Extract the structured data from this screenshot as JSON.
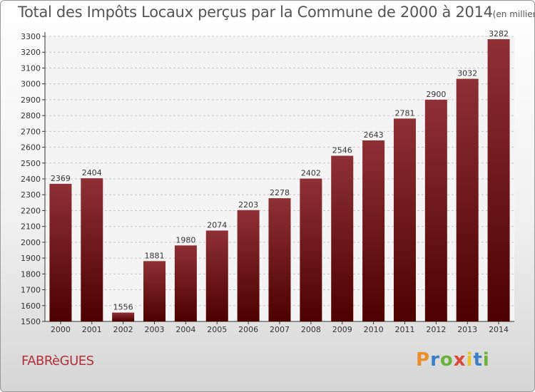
{
  "title": "Total des Impôts Locaux perçus par la Commune de 2000 à 2014",
  "unit": "(en milliers d'€)",
  "commune": "FABRèGUES",
  "logo": {
    "letters": [
      "P",
      "r",
      "o",
      "x",
      "i",
      "t",
      "i"
    ],
    "colors": [
      "#e8912c",
      "#3c7fc4",
      "#6cb33e",
      "#d94a3a",
      "#e8c72c",
      "#3c7fc4",
      "#6cb33e"
    ]
  },
  "chart_data": {
    "type": "bar",
    "title": "Total des Impôts Locaux perçus par la Commune de 2000 à 2014",
    "ylabel": "en milliers d'€",
    "categories": [
      "2000",
      "2001",
      "2002",
      "2003",
      "2004",
      "2005",
      "2006",
      "2007",
      "2008",
      "2009",
      "2010",
      "2011",
      "2012",
      "2013",
      "2014"
    ],
    "values": [
      2369,
      2404,
      1556,
      1881,
      1980,
      2074,
      2203,
      2278,
      2402,
      2546,
      2643,
      2781,
      2900,
      3032,
      3282
    ],
    "ylim": [
      1500,
      3300
    ],
    "yticks": [
      1500,
      1600,
      1700,
      1800,
      1900,
      2000,
      2100,
      2200,
      2300,
      2400,
      2500,
      2600,
      2700,
      2800,
      2900,
      3000,
      3100,
      3200,
      3300
    ],
    "grid": true,
    "bar_color": "#8b1c24"
  }
}
